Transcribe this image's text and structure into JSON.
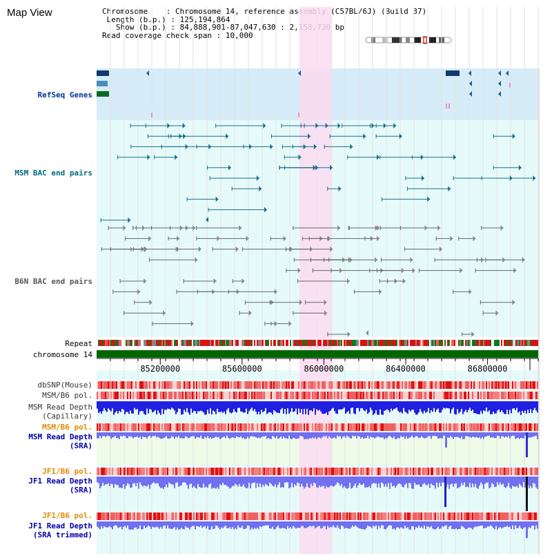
{
  "window": {
    "title": "Map View"
  },
  "info": {
    "chromosome_label": "Chromosome",
    "chromosome_value": "Chromosome 14, reference assembly (C57BL/6J) (Build 37)",
    "length_label": "Length (b.p.)",
    "length_value": "125,194,864",
    "show_label": "Show (b.p.)",
    "show_value": "84,888,901-87,047,630 : 2,158,730 bp",
    "span_label": "Read coverage check span",
    "span_value": "10,000"
  },
  "tracks": {
    "refseq": "RefSeq Genes",
    "msm_bac": "MSM BAC end pairs",
    "b6n_bac": "B6N BAC end pairs",
    "repeat": "Repeat",
    "chromosome": "chromosome 14",
    "dbsnp": "dbSNP(Mouse)",
    "msm_b6_pol_1": "MSM/B6 pol.",
    "msm_depth_cap_1": "MSM Read Depth",
    "msm_depth_cap_2": "(Capillary)",
    "msm_b6_pol_2": "MSM/B6 pol.",
    "msm_depth_sra_1": "MSM Read Depth",
    "msm_depth_sra_2": "(SRA)",
    "jf1_b6_pol_1": "JF1/B6 pol.",
    "jf1_depth_sra_1": "JF1 Read Depth",
    "jf1_depth_sra_2": "(SRA)",
    "jf1_b6_pol_2": "JF1/B6 pol.",
    "jf1_depth_trim_1": "JF1 Read Depth",
    "jf1_depth_trim_2": "(SRA trimmed)"
  },
  "axis": {
    "ticks": [
      "85200000",
      "85600000",
      "86000000",
      "86400000",
      "86800000"
    ],
    "tick_values": [
      85200000,
      85600000,
      86000000,
      86400000,
      86800000
    ],
    "start": 84888901,
    "end": 87047630
  },
  "selection": {
    "start": 85880000,
    "end": 86040000
  },
  "colors": {
    "refseq_bg": "#d6ecf8",
    "bac_bg": "#e6fafa",
    "selection": "#fadcf0",
    "msm_bac": "#1a6f8a",
    "b6n_bac": "#666666",
    "chromosome": "#006600",
    "snp": "#f08080",
    "depth_cap": "#2020e0",
    "depth_sra": "#7070f0"
  }
}
